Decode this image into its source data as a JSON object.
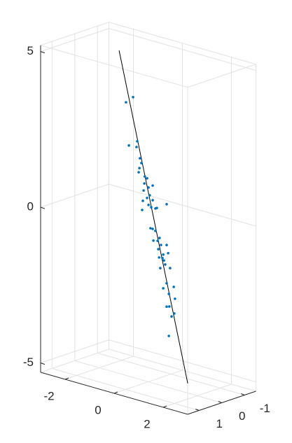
{
  "chart_data": {
    "type": "scatter3",
    "points": {
      "color": "#0072bd",
      "x": [
        -0.91,
        -0.62,
        -0.79,
        -0.45,
        -0.48,
        -0.34,
        -0.28,
        -0.36,
        -0.39,
        -0.14,
        -0.05,
        -0.16,
        0.18,
        0.01,
        -0.19,
        0.06,
        -0.05,
        0.18,
        -0.22,
        0.01,
        0.12,
        0.35,
        0.29,
        0.75,
        -0.25,
        0.09,
        0.18,
        0.29,
        0.46,
        0.21,
        0.38,
        0.52,
        0.75,
        0.41,
        0.61,
        0.58,
        0.81,
        0.44,
        0.64,
        0.69,
        0.49,
        0.89,
        0.75,
        0.61,
        1.04,
        0.84,
        0.75,
        0.86,
        1.09,
        1.06,
        0.95,
        0.84
      ],
      "y": [
        0,
        0,
        0,
        0,
        0,
        0,
        0,
        0,
        0,
        0,
        0,
        0,
        0,
        0,
        0,
        0,
        0,
        0,
        0,
        0,
        0,
        0,
        0,
        0,
        0,
        0,
        0,
        0,
        0,
        0,
        0,
        0,
        0,
        0,
        0,
        0,
        0,
        0,
        0,
        0,
        0,
        0,
        0,
        0,
        0,
        0,
        0,
        0,
        0,
        0,
        0,
        0
      ],
      "z": [
        3.47,
        3.7,
        2.11,
        2.32,
        2.13,
        1.8,
        1.66,
        1.48,
        1.34,
        1.26,
        1.22,
        1.03,
        1.04,
        0.94,
        0.8,
        0.7,
        0.59,
        0.57,
        0.46,
        0.38,
        0.33,
        0.36,
        0.33,
        0.57,
        0.16,
        -0.35,
        -0.35,
        -0.39,
        -0.58,
        -0.72,
        -0.69,
        -0.79,
        -0.74,
        -0.95,
        -1.08,
        -1.2,
        -0.99,
        -1.21,
        -1.26,
        -1.38,
        -1.54,
        -1.45,
        -1.97,
        -2.16,
        -2.02,
        -2.29,
        -2.72,
        -2.69,
        -2.39,
        -2.87,
        -2.99,
        -3.64
      ]
    },
    "line": {
      "color": "#000000",
      "x": [
        -1.19,
        1.61
      ],
      "y": [
        0,
        0
      ],
      "z": [
        5.07,
        -4.99
      ]
    },
    "xlim": [
      -3,
      3
    ],
    "ylim": [
      -1.5,
      1.5
    ],
    "zlim": [
      -5.3,
      5.2
    ],
    "xticks": [
      -2,
      0,
      2
    ],
    "yticks": [
      -1,
      0,
      1
    ],
    "zticks": [
      -5,
      0,
      5
    ],
    "grid": true
  }
}
